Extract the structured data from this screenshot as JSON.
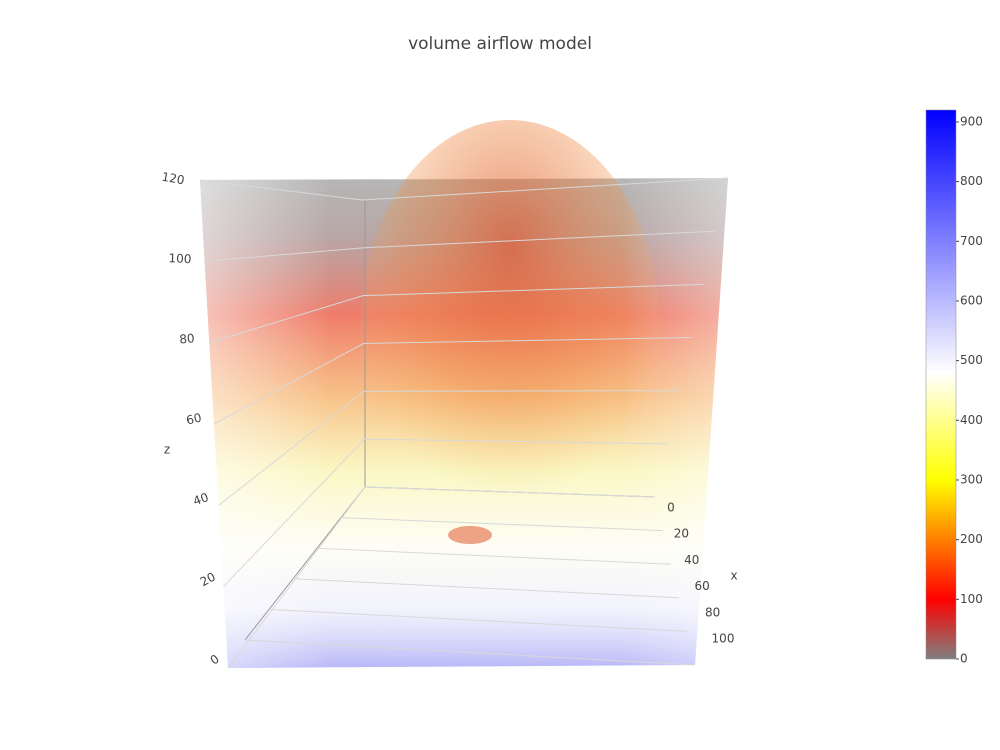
{
  "chart_data": {
    "type": "volume",
    "title": "volume airflow model",
    "zaxis": {
      "title": "z",
      "lim": [
        0,
        120
      ],
      "ticks": [
        0,
        20,
        40,
        60,
        80,
        100,
        120
      ]
    },
    "xaxis": {
      "title": "x",
      "lim": [
        0,
        100
      ],
      "ticks": [
        0,
        20,
        40,
        60,
        80,
        100
      ]
    },
    "colorbar": {
      "lim": [
        0,
        920
      ],
      "ticks": [
        0,
        100,
        200,
        300,
        400,
        500,
        600,
        700,
        800,
        900
      ],
      "colorscale": [
        {
          "value": 0,
          "color": "#808080"
        },
        {
          "value": 100,
          "color": "#ff0000"
        },
        {
          "value": 300,
          "color": "#ffff00"
        },
        {
          "value": 480,
          "color": "#ffffff"
        },
        {
          "value": 920,
          "color": "#0000ff"
        }
      ]
    }
  }
}
